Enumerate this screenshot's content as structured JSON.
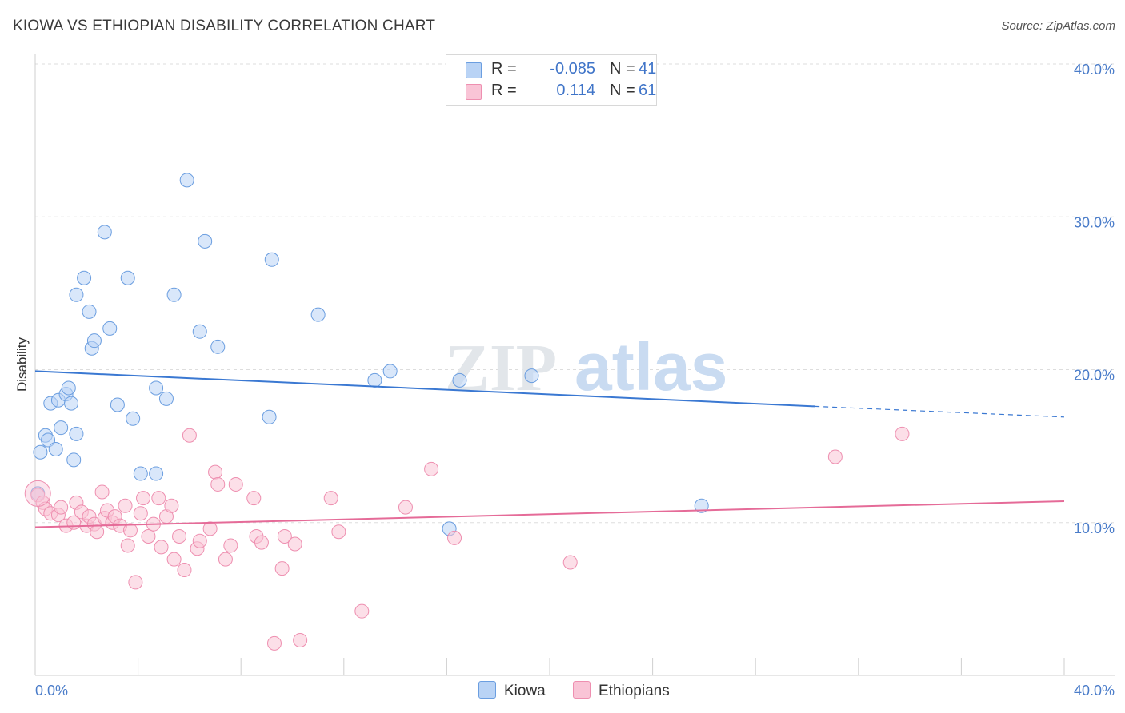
{
  "title": "KIOWA VS ETHIOPIAN DISABILITY CORRELATION CHART",
  "source": "Source: ZipAtlas.com",
  "watermark": {
    "zip": "ZIP",
    "atlas": "atlas"
  },
  "colors": {
    "kiowa_fill": "#b9d3f5",
    "kiowa_stroke": "#6b9ee0",
    "kiowa_line": "#3a78d2",
    "eth_fill": "#f9c4d6",
    "eth_stroke": "#ee8fb0",
    "eth_line": "#e56b98",
    "tick_text": "#4a7cc9",
    "grid": "#dddddd"
  },
  "legend": {
    "rows": [
      {
        "r_label": "R =",
        "r_value": "-0.085",
        "n_label": "N =",
        "n_value": "41"
      },
      {
        "r_label": "R =",
        "r_value": "0.114",
        "n_label": "N =",
        "n_value": "61"
      }
    ]
  },
  "chart_data": {
    "type": "scatter",
    "title": "KIOWA VS ETHIOPIAN DISABILITY CORRELATION CHART",
    "xlabel": "",
    "ylabel": "Disability",
    "xlim": [
      0,
      40
    ],
    "ylim": [
      0,
      40
    ],
    "x_tick_labels": [
      "0.0%",
      "40.0%"
    ],
    "y_ticks": [
      10,
      20,
      30,
      40
    ],
    "y_tick_labels": [
      "10.0%",
      "20.0%",
      "30.0%",
      "40.0%"
    ],
    "grid": true,
    "legend_position": "bottom-center",
    "series": [
      {
        "name": "Kiowa",
        "trend": {
          "x": [
            0,
            30.3
          ],
          "y": [
            19.9,
            17.6
          ],
          "dashed_to": [
            40,
            16.9
          ]
        },
        "points": [
          [
            0.2,
            14.6
          ],
          [
            0.4,
            15.7
          ],
          [
            0.5,
            15.4
          ],
          [
            0.6,
            17.8
          ],
          [
            0.8,
            14.8
          ],
          [
            0.9,
            18.0
          ],
          [
            1.0,
            16.2
          ],
          [
            1.2,
            18.4
          ],
          [
            1.3,
            18.8
          ],
          [
            1.4,
            17.8
          ],
          [
            1.5,
            14.1
          ],
          [
            1.6,
            15.8
          ],
          [
            1.6,
            24.9
          ],
          [
            1.9,
            26.0
          ],
          [
            2.1,
            23.8
          ],
          [
            2.2,
            21.4
          ],
          [
            2.3,
            21.9
          ],
          [
            2.7,
            29.0
          ],
          [
            2.9,
            22.7
          ],
          [
            3.2,
            17.7
          ],
          [
            3.6,
            26.0
          ],
          [
            3.8,
            16.8
          ],
          [
            4.1,
            13.2
          ],
          [
            4.7,
            18.8
          ],
          [
            4.7,
            13.2
          ],
          [
            5.1,
            18.1
          ],
          [
            5.4,
            24.9
          ],
          [
            5.9,
            32.4
          ],
          [
            6.4,
            22.5
          ],
          [
            6.6,
            28.4
          ],
          [
            7.1,
            21.5
          ],
          [
            9.1,
            16.9
          ],
          [
            9.2,
            27.2
          ],
          [
            11.0,
            23.6
          ],
          [
            13.2,
            19.3
          ],
          [
            13.8,
            19.9
          ],
          [
            16.1,
            9.6
          ],
          [
            16.5,
            19.3
          ],
          [
            19.3,
            19.6
          ],
          [
            25.9,
            11.1
          ],
          [
            0.1,
            11.9
          ]
        ]
      },
      {
        "name": "Ethiopians",
        "trend": {
          "x": [
            0,
            40
          ],
          "y": [
            9.7,
            11.4
          ]
        },
        "points": [
          [
            0.1,
            11.8
          ],
          [
            0.3,
            11.3
          ],
          [
            0.4,
            10.9
          ],
          [
            0.6,
            10.6
          ],
          [
            0.9,
            10.5
          ],
          [
            1.0,
            11.0
          ],
          [
            1.2,
            9.8
          ],
          [
            1.5,
            10.0
          ],
          [
            1.6,
            11.3
          ],
          [
            1.8,
            10.7
          ],
          [
            2.0,
            9.8
          ],
          [
            2.1,
            10.4
          ],
          [
            2.3,
            9.9
          ],
          [
            2.4,
            9.4
          ],
          [
            2.6,
            12.0
          ],
          [
            2.7,
            10.3
          ],
          [
            2.8,
            10.8
          ],
          [
            3.0,
            10.0
          ],
          [
            3.1,
            10.4
          ],
          [
            3.3,
            9.8
          ],
          [
            3.5,
            11.1
          ],
          [
            3.6,
            8.5
          ],
          [
            3.7,
            9.5
          ],
          [
            3.9,
            6.1
          ],
          [
            4.1,
            10.6
          ],
          [
            4.2,
            11.6
          ],
          [
            4.4,
            9.1
          ],
          [
            4.6,
            9.9
          ],
          [
            4.8,
            11.6
          ],
          [
            4.9,
            8.4
          ],
          [
            5.1,
            10.4
          ],
          [
            5.3,
            11.1
          ],
          [
            5.4,
            7.6
          ],
          [
            5.6,
            9.1
          ],
          [
            5.8,
            6.9
          ],
          [
            6.0,
            15.7
          ],
          [
            6.3,
            8.3
          ],
          [
            6.4,
            8.8
          ],
          [
            6.8,
            9.6
          ],
          [
            7.0,
            13.3
          ],
          [
            7.1,
            12.5
          ],
          [
            7.4,
            7.6
          ],
          [
            7.6,
            8.5
          ],
          [
            7.8,
            12.5
          ],
          [
            8.5,
            11.6
          ],
          [
            8.6,
            9.1
          ],
          [
            8.8,
            8.7
          ],
          [
            9.3,
            2.1
          ],
          [
            9.6,
            7.0
          ],
          [
            9.7,
            9.1
          ],
          [
            10.1,
            8.6
          ],
          [
            10.3,
            2.3
          ],
          [
            11.5,
            11.6
          ],
          [
            11.8,
            9.4
          ],
          [
            12.7,
            4.2
          ],
          [
            14.4,
            11.0
          ],
          [
            15.4,
            13.5
          ],
          [
            16.3,
            9.0
          ],
          [
            20.8,
            7.4
          ],
          [
            31.1,
            14.3
          ],
          [
            33.7,
            15.8
          ]
        ]
      }
    ]
  }
}
